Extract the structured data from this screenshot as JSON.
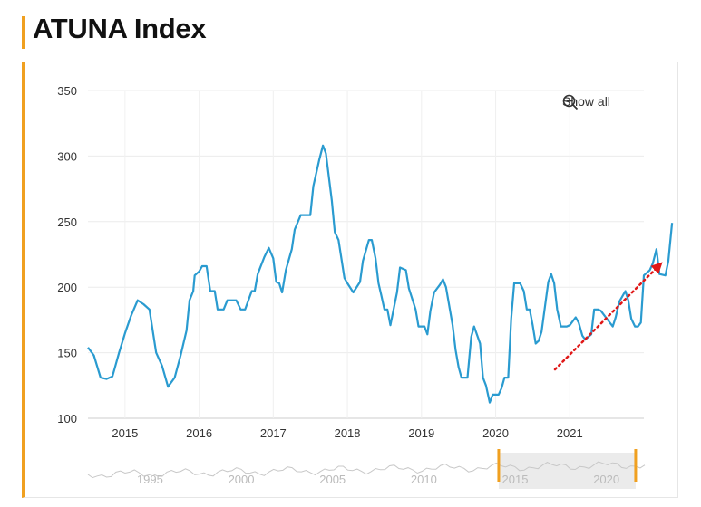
{
  "title": "ATUNA Index",
  "show_all_label": "Show all",
  "colors": {
    "line": "#2a9bd0",
    "accent": "#f0a020",
    "arrow": "#e01818"
  },
  "chart_data": {
    "type": "line",
    "title": "ATUNA Index",
    "xlabel": "",
    "ylabel": "",
    "ylim": [
      100,
      350
    ],
    "yticks": [
      100,
      150,
      200,
      250,
      300,
      350
    ],
    "xlim": [
      2014.5,
      2022.0
    ],
    "xticks": [
      2015,
      2016,
      2017,
      2018,
      2019,
      2020,
      2021
    ],
    "grid": true,
    "series": [
      {
        "values": [
          [
            2014.5,
            154
          ],
          [
            2014.58,
            148
          ],
          [
            2014.67,
            131
          ],
          [
            2014.75,
            130
          ],
          [
            2014.83,
            132
          ],
          [
            2014.92,
            150
          ],
          [
            2015.0,
            165
          ],
          [
            2015.08,
            178
          ],
          [
            2015.17,
            190
          ],
          [
            2015.25,
            187
          ],
          [
            2015.33,
            183
          ],
          [
            2015.42,
            150
          ],
          [
            2015.5,
            140
          ],
          [
            2015.58,
            124
          ],
          [
            2015.67,
            131
          ],
          [
            2015.75,
            148
          ],
          [
            2015.83,
            167
          ],
          [
            2015.87,
            190
          ],
          [
            2015.92,
            197
          ],
          [
            2015.94,
            209
          ],
          [
            2016.0,
            212
          ],
          [
            2016.04,
            216
          ],
          [
            2016.1,
            216
          ],
          [
            2016.15,
            197
          ],
          [
            2016.21,
            197
          ],
          [
            2016.25,
            183
          ],
          [
            2016.33,
            183
          ],
          [
            2016.38,
            190
          ],
          [
            2016.5,
            190
          ],
          [
            2016.56,
            183
          ],
          [
            2016.62,
            183
          ],
          [
            2016.71,
            197
          ],
          [
            2016.75,
            197
          ],
          [
            2016.79,
            210
          ],
          [
            2016.88,
            223
          ],
          [
            2016.94,
            230
          ],
          [
            2017.0,
            222
          ],
          [
            2017.04,
            204
          ],
          [
            2017.08,
            203
          ],
          [
            2017.12,
            196
          ],
          [
            2017.17,
            213
          ],
          [
            2017.25,
            229
          ],
          [
            2017.29,
            244
          ],
          [
            2017.37,
            255
          ],
          [
            2017.5,
            255
          ],
          [
            2017.54,
            277
          ],
          [
            2017.62,
            297
          ],
          [
            2017.67,
            308
          ],
          [
            2017.71,
            302
          ],
          [
            2017.79,
            266
          ],
          [
            2017.83,
            242
          ],
          [
            2017.88,
            236
          ],
          [
            2017.96,
            207
          ],
          [
            2018.0,
            203
          ],
          [
            2018.08,
            196
          ],
          [
            2018.17,
            204
          ],
          [
            2018.21,
            220
          ],
          [
            2018.29,
            236
          ],
          [
            2018.33,
            236
          ],
          [
            2018.38,
            222
          ],
          [
            2018.42,
            203
          ],
          [
            2018.46,
            193
          ],
          [
            2018.5,
            183
          ],
          [
            2018.54,
            183
          ],
          [
            2018.58,
            171
          ],
          [
            2018.62,
            182
          ],
          [
            2018.67,
            196
          ],
          [
            2018.71,
            215
          ],
          [
            2018.79,
            213
          ],
          [
            2018.83,
            199
          ],
          [
            2018.92,
            183
          ],
          [
            2018.96,
            170
          ],
          [
            2019.04,
            170
          ],
          [
            2019.08,
            164
          ],
          [
            2019.12,
            182
          ],
          [
            2019.17,
            196
          ],
          [
            2019.25,
            202
          ],
          [
            2019.29,
            206
          ],
          [
            2019.33,
            200
          ],
          [
            2019.42,
            171
          ],
          [
            2019.46,
            152
          ],
          [
            2019.5,
            139
          ],
          [
            2019.54,
            131
          ],
          [
            2019.62,
            131
          ],
          [
            2019.67,
            162
          ],
          [
            2019.71,
            170
          ],
          [
            2019.79,
            157
          ],
          [
            2019.83,
            131
          ],
          [
            2019.87,
            125
          ],
          [
            2019.92,
            112
          ],
          [
            2019.96,
            118
          ],
          [
            2020.04,
            118
          ],
          [
            2020.08,
            123
          ],
          [
            2020.12,
            131
          ],
          [
            2020.17,
            131
          ],
          [
            2020.21,
            176
          ],
          [
            2020.25,
            203
          ],
          [
            2020.33,
            203
          ],
          [
            2020.38,
            197
          ],
          [
            2020.42,
            183
          ],
          [
            2020.46,
            183
          ],
          [
            2020.5,
            171
          ],
          [
            2020.54,
            157
          ],
          [
            2020.58,
            159
          ],
          [
            2020.62,
            166
          ],
          [
            2020.71,
            204
          ],
          [
            2020.75,
            210
          ],
          [
            2020.79,
            203
          ],
          [
            2020.83,
            183
          ],
          [
            2020.88,
            170
          ],
          [
            2020.96,
            170
          ],
          [
            2021.0,
            171
          ],
          [
            2021.08,
            177
          ],
          [
            2021.12,
            173
          ],
          [
            2021.17,
            163
          ],
          [
            2021.21,
            160
          ],
          [
            2021.29,
            164
          ],
          [
            2021.33,
            183
          ],
          [
            2021.38,
            183
          ],
          [
            2021.42,
            182
          ],
          [
            2021.5,
            176
          ],
          [
            2021.58,
            170
          ],
          [
            2021.62,
            177
          ],
          [
            2021.67,
            189
          ],
          [
            2021.75,
            197
          ],
          [
            2021.79,
            190
          ],
          [
            2021.83,
            176
          ],
          [
            2021.88,
            170
          ],
          [
            2021.92,
            170
          ],
          [
            2021.96,
            173
          ],
          [
            2022.0,
            209
          ],
          [
            2022.08,
            213
          ],
          [
            2022.12,
            218
          ],
          [
            2022.17,
            229
          ],
          [
            2022.21,
            210
          ],
          [
            2022.29,
            209
          ],
          [
            2022.33,
            220
          ],
          [
            2022.38,
            249
          ]
        ]
      }
    ]
  },
  "navigator": {
    "xticks": [
      1995,
      2000,
      2005,
      2010,
      2015,
      2020
    ],
    "range": [
      1992,
      2022.5
    ],
    "selection": [
      2014.5,
      2022.0
    ]
  }
}
